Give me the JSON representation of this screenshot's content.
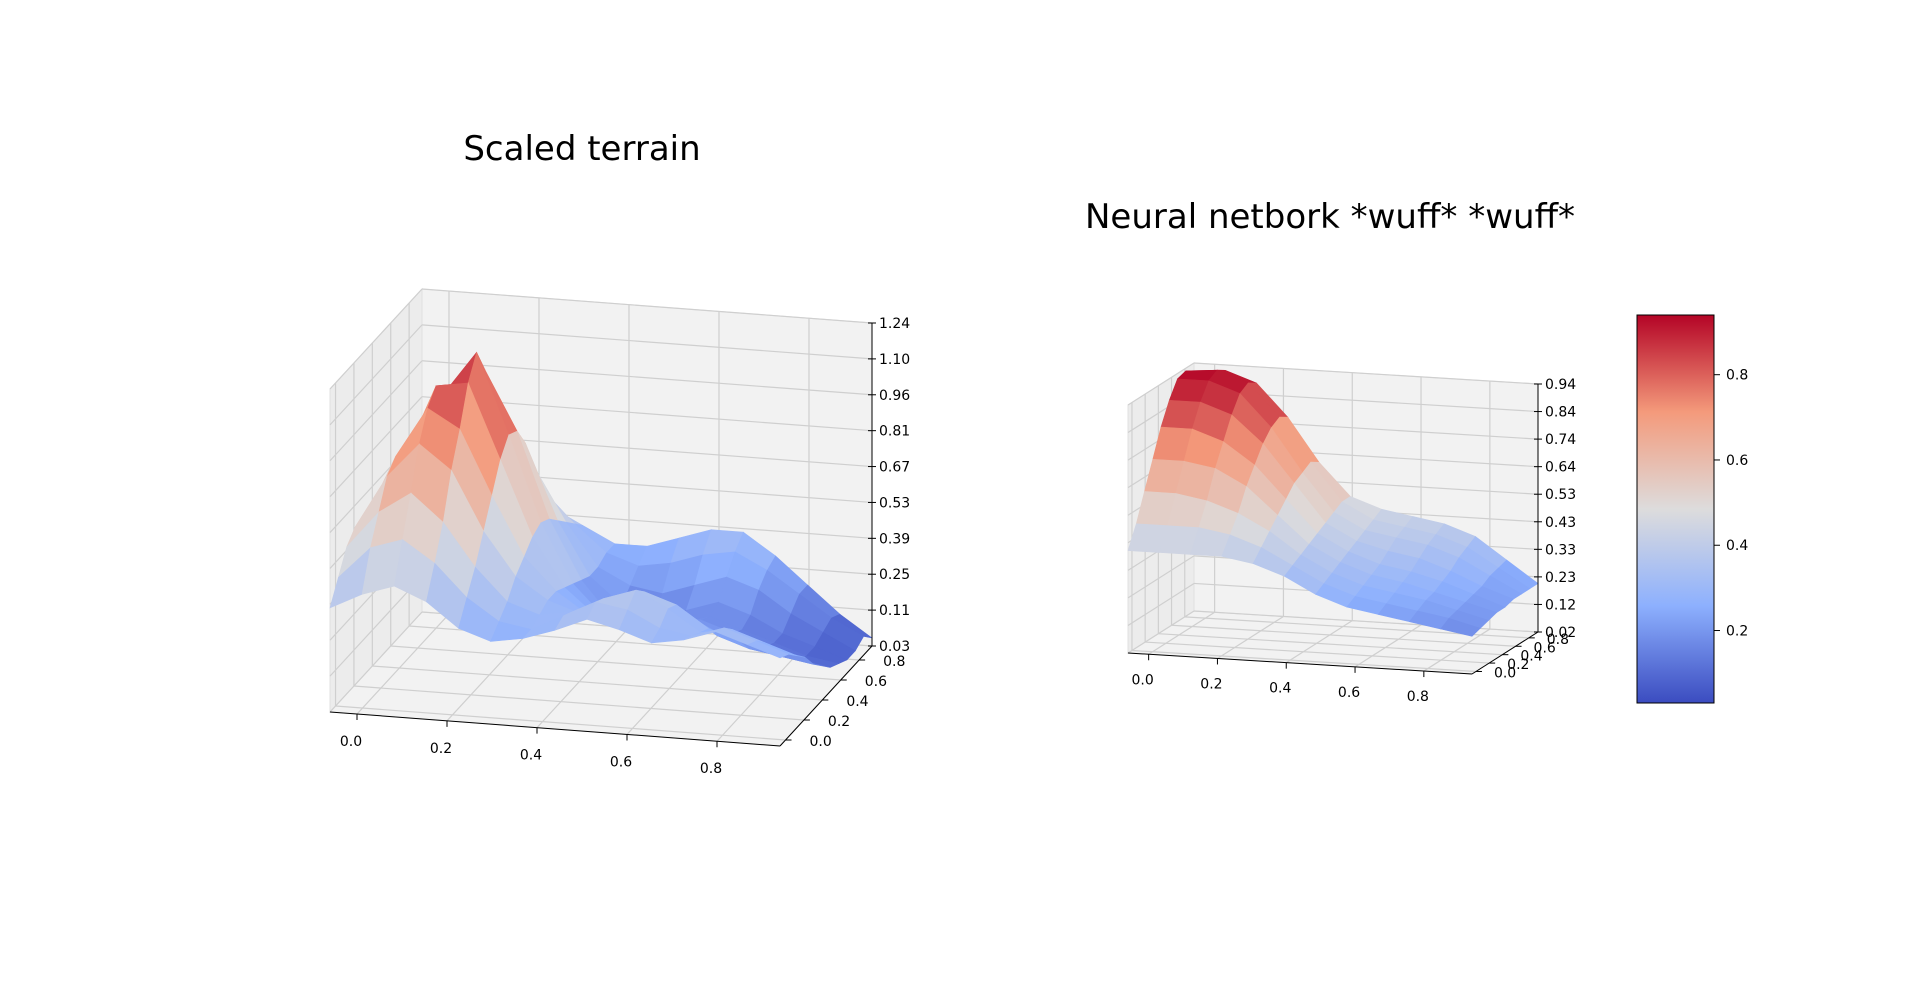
{
  "chart_data": [
    {
      "type": "surface",
      "title": "Scaled terrain",
      "x_ticks": [
        "0.0",
        "0.2",
        "0.4",
        "0.6",
        "0.8"
      ],
      "y_ticks": [
        "0.0",
        "0.2",
        "0.4",
        "0.6",
        "0.8"
      ],
      "z_ticks": [
        "0.03",
        "0.11",
        "0.25",
        "0.39",
        "0.53",
        "0.67",
        "0.81",
        "0.96",
        "1.10",
        "1.24"
      ],
      "xlim": [
        0,
        1
      ],
      "ylim": [
        0,
        1
      ],
      "zlim": [
        0.03,
        1.24
      ],
      "colormap": "coolwarm",
      "grid": true,
      "z_grid": [
        [
          0.42,
          0.48,
          0.52,
          0.47,
          0.38,
          0.34,
          0.36,
          0.4,
          0.45,
          0.42,
          0.38,
          0.4,
          0.44,
          0.4,
          0.36
        ],
        [
          0.5,
          0.62,
          0.66,
          0.58,
          0.46,
          0.38,
          0.36,
          0.42,
          0.48,
          0.46,
          0.4,
          0.38,
          0.42,
          0.38,
          0.34
        ],
        [
          0.58,
          0.72,
          0.8,
          0.7,
          0.54,
          0.42,
          0.38,
          0.4,
          0.46,
          0.5,
          0.44,
          0.36,
          0.38,
          0.34,
          0.3
        ],
        [
          0.62,
          0.82,
          0.95,
          0.86,
          0.64,
          0.48,
          0.4,
          0.36,
          0.4,
          0.46,
          0.42,
          0.34,
          0.3,
          0.28,
          0.26
        ],
        [
          0.6,
          0.86,
          1.05,
          0.98,
          0.74,
          0.52,
          0.4,
          0.32,
          0.34,
          0.38,
          0.36,
          0.28,
          0.24,
          0.22,
          0.2
        ],
        [
          0.54,
          0.82,
          1.1,
          1.12,
          0.84,
          0.56,
          0.38,
          0.28,
          0.26,
          0.3,
          0.3,
          0.24,
          0.2,
          0.18,
          0.16
        ],
        [
          0.48,
          0.74,
          1.04,
          1.2,
          0.9,
          0.58,
          0.36,
          0.24,
          0.2,
          0.24,
          0.26,
          0.22,
          0.18,
          0.14,
          0.12
        ],
        [
          0.42,
          0.64,
          0.92,
          1.1,
          0.88,
          0.56,
          0.34,
          0.2,
          0.16,
          0.2,
          0.24,
          0.2,
          0.16,
          0.12,
          0.1
        ],
        [
          0.36,
          0.54,
          0.78,
          0.94,
          0.8,
          0.52,
          0.32,
          0.22,
          0.18,
          0.22,
          0.26,
          0.22,
          0.16,
          0.12,
          0.08
        ],
        [
          0.3,
          0.44,
          0.62,
          0.76,
          0.68,
          0.48,
          0.32,
          0.26,
          0.24,
          0.28,
          0.32,
          0.28,
          0.2,
          0.14,
          0.08
        ],
        [
          0.26,
          0.36,
          0.5,
          0.6,
          0.56,
          0.44,
          0.34,
          0.3,
          0.32,
          0.36,
          0.38,
          0.32,
          0.24,
          0.16,
          0.1
        ],
        [
          0.22,
          0.3,
          0.4,
          0.48,
          0.46,
          0.4,
          0.34,
          0.34,
          0.38,
          0.42,
          0.42,
          0.34,
          0.24,
          0.14,
          0.06
        ]
      ]
    },
    {
      "type": "surface",
      "title": "Neural netbork *wuff* *wuff*",
      "x_ticks": [
        "0.0",
        "0.2",
        "0.4",
        "0.6",
        "0.8"
      ],
      "y_ticks": [
        "0.0",
        "0.2",
        "0.4",
        "0.6",
        "0.8"
      ],
      "z_ticks": [
        "0.02",
        "0.12",
        "0.23",
        "0.33",
        "0.43",
        "0.53",
        "0.64",
        "0.74",
        "0.84",
        "0.94"
      ],
      "xlim": [
        0,
        1
      ],
      "ylim": [
        0,
        1
      ],
      "zlim": [
        0.02,
        0.94
      ],
      "colormap": "coolwarm",
      "grid": true,
      "z_grid": [
        [
          0.4,
          0.4,
          0.4,
          0.4,
          0.38,
          0.34,
          0.28,
          0.24,
          0.22,
          0.2,
          0.18,
          0.16
        ],
        [
          0.48,
          0.48,
          0.48,
          0.46,
          0.42,
          0.36,
          0.3,
          0.26,
          0.24,
          0.22,
          0.2,
          0.17
        ],
        [
          0.58,
          0.58,
          0.56,
          0.52,
          0.46,
          0.38,
          0.32,
          0.28,
          0.26,
          0.24,
          0.21,
          0.18
        ],
        [
          0.68,
          0.68,
          0.66,
          0.6,
          0.5,
          0.4,
          0.34,
          0.3,
          0.28,
          0.25,
          0.22,
          0.19
        ],
        [
          0.78,
          0.78,
          0.74,
          0.66,
          0.54,
          0.42,
          0.36,
          0.32,
          0.3,
          0.27,
          0.23,
          0.19
        ],
        [
          0.86,
          0.86,
          0.82,
          0.72,
          0.58,
          0.44,
          0.38,
          0.35,
          0.33,
          0.29,
          0.24,
          0.2
        ],
        [
          0.92,
          0.92,
          0.88,
          0.76,
          0.6,
          0.46,
          0.4,
          0.38,
          0.36,
          0.32,
          0.26,
          0.2
        ],
        [
          0.93,
          0.94,
          0.9,
          0.78,
          0.62,
          0.48,
          0.42,
          0.4,
          0.38,
          0.34,
          0.27,
          0.2
        ],
        [
          0.9,
          0.92,
          0.88,
          0.76,
          0.6,
          0.48,
          0.44,
          0.42,
          0.4,
          0.36,
          0.28,
          0.2
        ]
      ]
    }
  ],
  "colorbar": {
    "ticks": [
      "0.2",
      "0.4",
      "0.6",
      "0.8"
    ],
    "range": [
      0.03,
      0.94
    ],
    "tick_values": [
      0.2,
      0.4,
      0.6,
      0.8
    ]
  }
}
